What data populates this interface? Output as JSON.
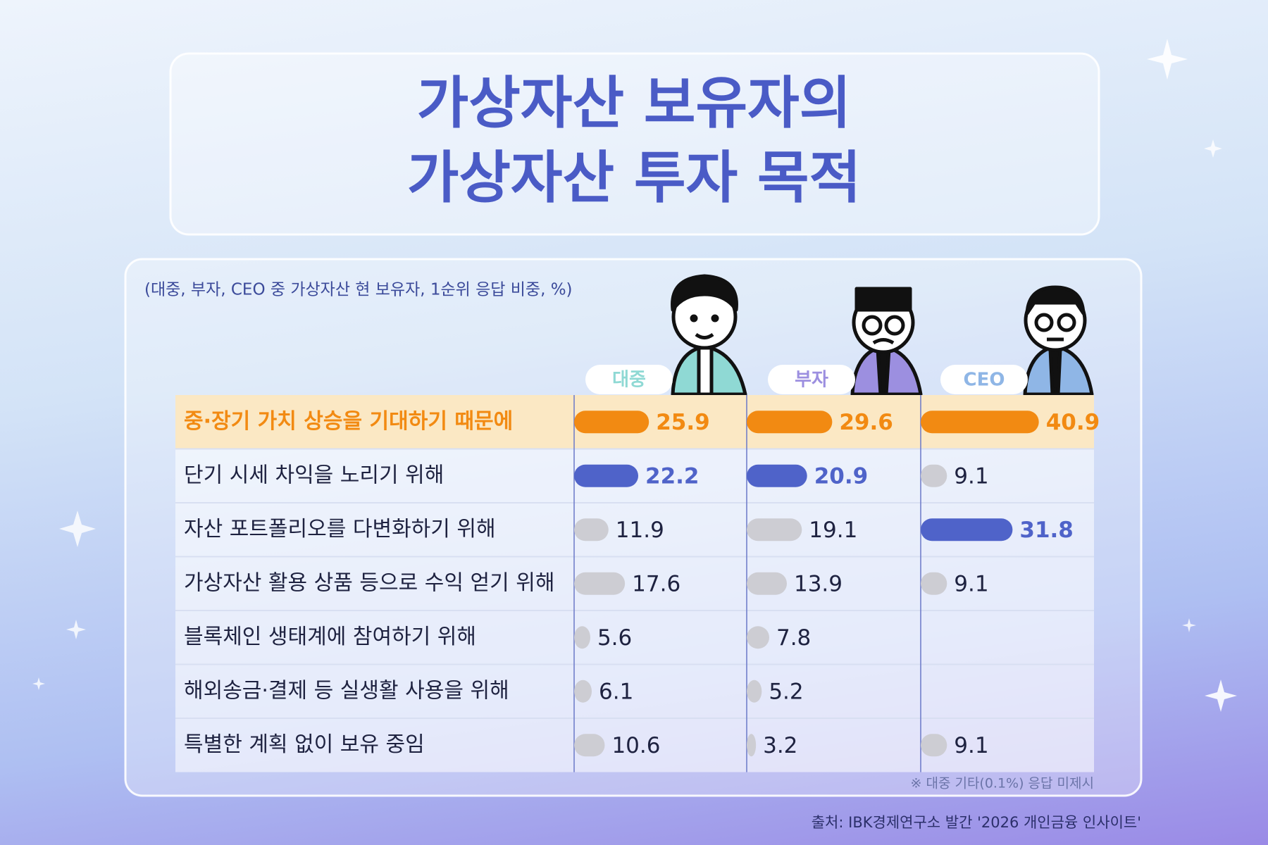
{
  "title_lines": [
    "가상자산 보유자의",
    "가상자산 투자 목적"
  ],
  "chart_data": {
    "type": "bar",
    "subtitle": "(대중, 부자, CEO 중 가상자산 현 보유자, 1순위 응답 비중, %)",
    "categories": [
      "중·장기 가치 상승을 기대하기 때문에",
      "단기 시세 차익을 노리기 위해",
      "자산 포트폴리오를 다변화하기 위해",
      "가상자산 활용 상품 등으로 수익 얻기 위해",
      "블록체인 생태계에 참여하기 위해",
      "해외송금·결제 등 실생활 사용을 위해",
      "특별한 계획 없이 보유 중임"
    ],
    "series": [
      {
        "name": "대중",
        "values": [
          25.9,
          22.2,
          11.9,
          17.6,
          5.6,
          6.1,
          10.6
        ],
        "colors": [
          "#f28a12",
          "#4f63c9",
          "#cdcdd3",
          "#cdcdd3",
          "#cdcdd3",
          "#cdcdd3",
          "#cdcdd3"
        ]
      },
      {
        "name": "부자",
        "values": [
          29.6,
          20.9,
          19.1,
          13.9,
          7.8,
          5.2,
          3.2
        ],
        "colors": [
          "#f28a12",
          "#4f63c9",
          "#cdcdd3",
          "#cdcdd3",
          "#cdcdd3",
          "#cdcdd3",
          "#cdcdd3"
        ]
      },
      {
        "name": "CEO",
        "values": [
          40.9,
          9.1,
          31.8,
          9.1,
          null,
          null,
          9.1
        ],
        "colors": [
          "#f28a12",
          "#cdcdd3",
          "#4f63c9",
          "#cdcdd3",
          null,
          null,
          "#cdcdd3"
        ]
      }
    ],
    "xlim": [
      0,
      60
    ],
    "highlight_color": "#f28a12",
    "note": "※ 대중 기타(0.1%) 응답 미제시"
  },
  "source": "출처: IBK경제연구소 발간 '2026 개인금융 인사이트'"
}
